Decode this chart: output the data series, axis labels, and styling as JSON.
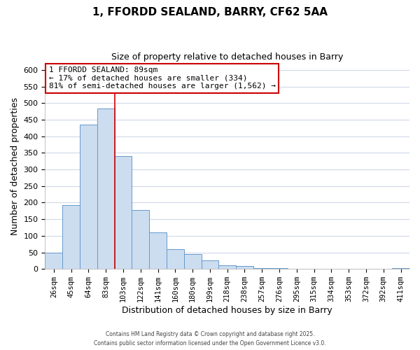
{
  "title": "1, FFORDD SEALAND, BARRY, CF62 5AA",
  "subtitle": "Size of property relative to detached houses in Barry",
  "xlabel": "Distribution of detached houses by size in Barry",
  "ylabel": "Number of detached properties",
  "bar_labels": [
    "26sqm",
    "45sqm",
    "64sqm",
    "83sqm",
    "103sqm",
    "122sqm",
    "141sqm",
    "160sqm",
    "180sqm",
    "199sqm",
    "218sqm",
    "238sqm",
    "257sqm",
    "276sqm",
    "295sqm",
    "315sqm",
    "334sqm",
    "353sqm",
    "372sqm",
    "392sqm",
    "411sqm"
  ],
  "bar_values": [
    50,
    192,
    435,
    484,
    340,
    178,
    110,
    60,
    44,
    25,
    10,
    8,
    3,
    2,
    1,
    1,
    0,
    0,
    0,
    0,
    2
  ],
  "bar_color": "#ccddf0",
  "bar_edge_color": "#6699cc",
  "vline_color": "#cc0000",
  "annotation_title": "1 FFORDD SEALAND: 89sqm",
  "annotation_line1": "← 17% of detached houses are smaller (334)",
  "annotation_line2": "81% of semi-detached houses are larger (1,562) →",
  "annotation_box_edge": "#cc0000",
  "ylim": [
    0,
    620
  ],
  "yticks": [
    0,
    50,
    100,
    150,
    200,
    250,
    300,
    350,
    400,
    450,
    500,
    550,
    600
  ],
  "footnote1": "Contains HM Land Registry data © Crown copyright and database right 2025.",
  "footnote2": "Contains public sector information licensed under the Open Government Licence v3.0.",
  "background_color": "#ffffff",
  "grid_color": "#d0d8e8"
}
